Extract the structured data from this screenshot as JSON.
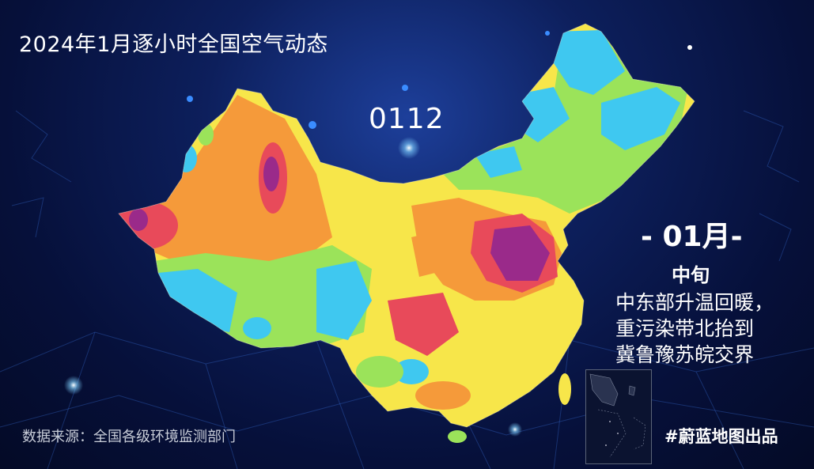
{
  "header": {
    "title": "2024年1月逐小时全国空气动态"
  },
  "timestamp": "0112",
  "caption": {
    "month": "- 01月-",
    "period": "中旬",
    "lines": [
      "中东部升温回暖，",
      "重污染带北抬到",
      "冀鲁豫苏皖交界"
    ]
  },
  "footer": {
    "source": "数据来源：全国各级环境监测部门",
    "brand": "#蔚蓝地图出品"
  },
  "colors": {
    "background": "#0b1a4f",
    "good": "#3fc8f0",
    "moderate": "#9be35a",
    "light": "#f7e64a",
    "medium": "#f59a3a",
    "heavy": "#e84a5a",
    "severe": "#9a2a8a"
  }
}
